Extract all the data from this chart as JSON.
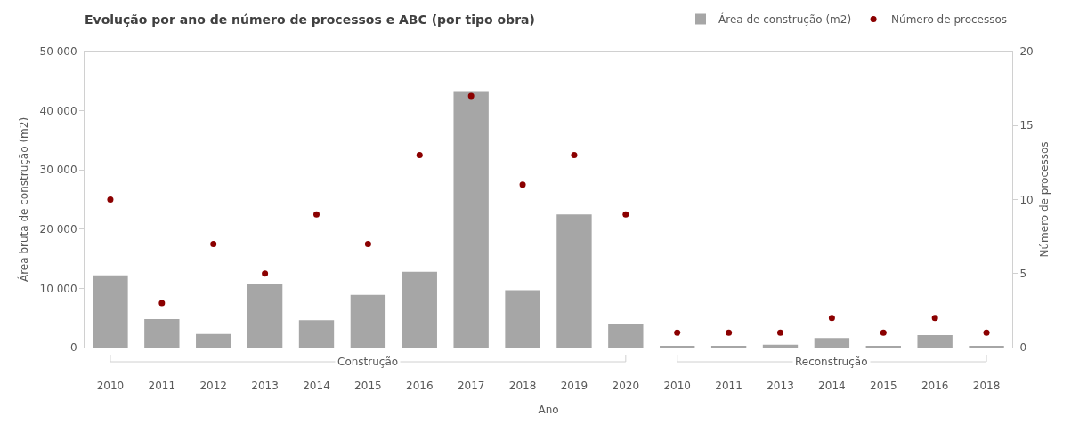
{
  "chart_data": {
    "type": "bar",
    "title": "Evolução por ano de número de processos e ABC (por tipo obra)",
    "xlabel": "Ano",
    "ylabel": "Área bruta de construção (m2)",
    "y2label": "Número de processos",
    "categories": [
      "2010",
      "2011",
      "2012",
      "2013",
      "2014",
      "2015",
      "2016",
      "2017",
      "2018",
      "2019",
      "2020",
      "2010",
      "2011",
      "2013",
      "2014",
      "2015",
      "2016",
      "2018"
    ],
    "series": [
      {
        "name": "Área de construção (m2)",
        "color": "#a6a6a6",
        "values": [
          12200,
          4800,
          2300,
          10700,
          4600,
          8900,
          12800,
          43300,
          9700,
          22500,
          4000,
          300,
          300,
          500,
          1600,
          300,
          2100,
          300
        ]
      },
      {
        "name": "Número de processos",
        "type": "scatter",
        "axis": "y2",
        "color": "#8b0000",
        "values": [
          10,
          3,
          7,
          5,
          9,
          7,
          13,
          17,
          11,
          13,
          9,
          1,
          1,
          1,
          2,
          1,
          2,
          1
        ]
      }
    ],
    "ylim": [
      0,
      50000
    ],
    "yticks": [
      0,
      {
        "value": 10000,
        "label": "10 000"
      },
      {
        "value": 20000,
        "label": "20 000"
      },
      {
        "value": 30000,
        "label": "30 000"
      },
      {
        "value": 40000,
        "label": "40 000"
      },
      {
        "value": 50000,
        "label": "50 000"
      }
    ],
    "y2lim": [
      0,
      20
    ],
    "y2ticks": [
      0,
      5,
      10,
      15,
      20
    ],
    "legend": "top right",
    "marker": "circle",
    "annotations": [
      "Construção",
      "Reconstrução"
    ]
  }
}
